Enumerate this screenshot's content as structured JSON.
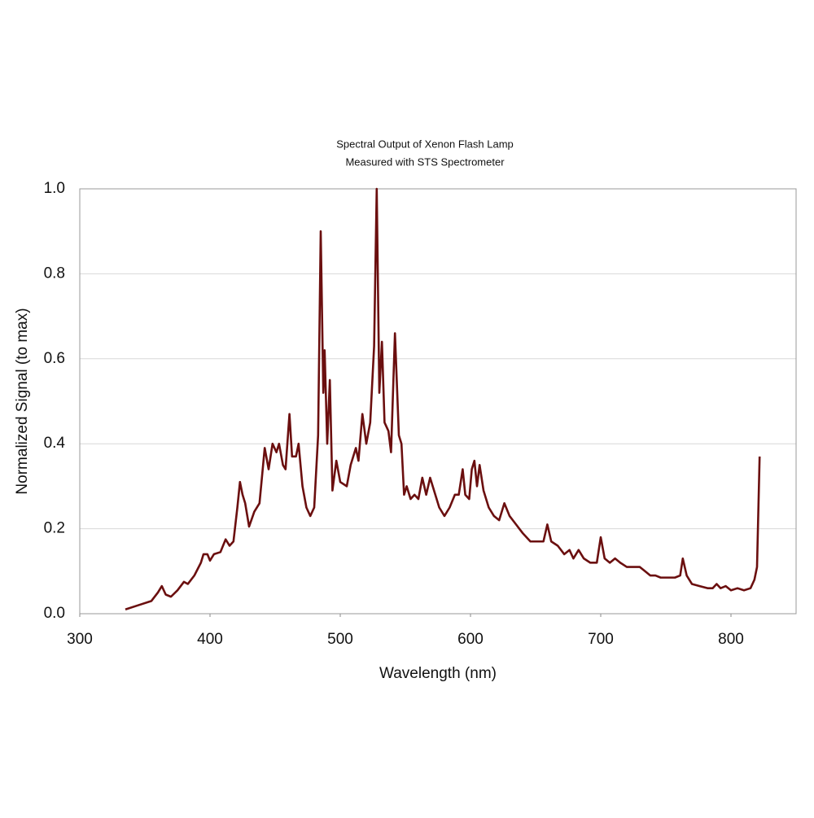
{
  "chart_data": {
    "type": "line",
    "title": "Spectral Output of Xenon Flash Lamp",
    "subtitle": "Measured with STS Spectrometer",
    "x_label": "Wavelength (nm)",
    "y_label": "Normalized Signal (to max)",
    "xlim": [
      300,
      850
    ],
    "xticks": [
      300,
      400,
      500,
      600,
      700,
      800
    ],
    "ylim": [
      0,
      1
    ],
    "yticks": [
      {
        "value": 0,
        "label": "0.0"
      },
      0.2,
      0.4,
      0.6,
      0.8,
      {
        "value": 1,
        "label": "1.0"
      }
    ],
    "grid": true,
    "x": [
      335,
      345,
      355,
      360,
      363,
      366,
      370,
      375,
      380,
      383,
      388,
      393,
      395,
      398,
      400,
      403,
      408,
      412,
      415,
      418,
      421,
      423,
      425,
      427,
      430,
      434,
      438,
      442,
      445,
      448,
      451,
      453,
      456,
      458,
      461,
      463,
      466,
      468,
      471,
      474,
      477,
      480,
      483,
      485,
      487,
      488,
      490,
      492,
      494,
      497,
      500,
      505,
      508,
      512,
      514,
      517,
      520,
      523,
      526,
      528,
      530,
      532,
      534,
      537,
      539,
      542,
      545,
      547,
      549,
      551,
      554,
      557,
      560,
      563,
      566,
      569,
      572,
      576,
      580,
      584,
      588,
      591,
      594,
      596,
      599,
      601,
      603,
      605,
      607,
      610,
      614,
      618,
      622,
      626,
      630,
      635,
      640,
      646,
      652,
      656,
      659,
      662,
      667,
      672,
      676,
      679,
      683,
      687,
      692,
      697,
      700,
      703,
      707,
      711,
      715,
      720,
      726,
      730,
      734,
      738,
      742,
      746,
      752,
      757,
      761,
      763,
      766,
      770,
      776,
      782,
      786,
      789,
      792,
      796,
      800,
      805,
      810,
      815,
      818,
      820,
      822
    ],
    "series": [
      {
        "color": "#6b0f0f",
        "values": [
          0.01,
          0.02,
          0.03,
          0.05,
          0.065,
          0.045,
          0.04,
          0.055,
          0.075,
          0.07,
          0.09,
          0.12,
          0.14,
          0.14,
          0.125,
          0.14,
          0.145,
          0.175,
          0.16,
          0.17,
          0.25,
          0.31,
          0.28,
          0.26,
          0.205,
          0.24,
          0.26,
          0.39,
          0.34,
          0.4,
          0.38,
          0.4,
          0.35,
          0.34,
          0.47,
          0.37,
          0.37,
          0.4,
          0.3,
          0.25,
          0.23,
          0.25,
          0.42,
          0.9,
          0.52,
          0.62,
          0.4,
          0.55,
          0.29,
          0.36,
          0.31,
          0.3,
          0.35,
          0.39,
          0.36,
          0.47,
          0.4,
          0.45,
          0.63,
          1.0,
          0.52,
          0.64,
          0.45,
          0.43,
          0.38,
          0.66,
          0.42,
          0.4,
          0.28,
          0.3,
          0.27,
          0.28,
          0.27,
          0.32,
          0.28,
          0.32,
          0.29,
          0.25,
          0.23,
          0.25,
          0.28,
          0.28,
          0.34,
          0.28,
          0.27,
          0.34,
          0.36,
          0.3,
          0.35,
          0.29,
          0.25,
          0.23,
          0.22,
          0.26,
          0.23,
          0.21,
          0.19,
          0.17,
          0.17,
          0.17,
          0.21,
          0.17,
          0.16,
          0.14,
          0.15,
          0.13,
          0.15,
          0.13,
          0.12,
          0.12,
          0.18,
          0.13,
          0.12,
          0.13,
          0.12,
          0.11,
          0.11,
          0.11,
          0.1,
          0.09,
          0.09,
          0.085,
          0.085,
          0.085,
          0.09,
          0.13,
          0.09,
          0.07,
          0.065,
          0.06,
          0.06,
          0.07,
          0.06,
          0.065,
          0.055,
          0.06,
          0.055,
          0.06,
          0.08,
          0.11,
          0.37
        ]
      }
    ]
  }
}
